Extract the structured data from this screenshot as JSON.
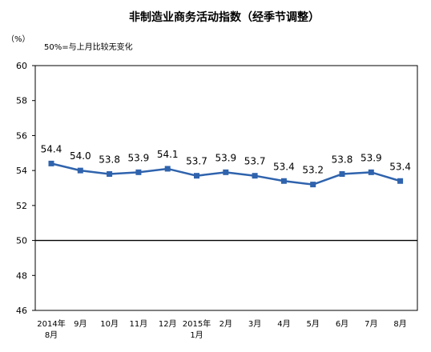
{
  "chart_data": {
    "type": "line",
    "title": "非制造业商务活动指数（经季节调整）",
    "y_unit": "（%）",
    "note": "50%=与上月比较无变化",
    "categories": [
      [
        "2014年",
        "8月"
      ],
      [
        "9月"
      ],
      [
        "10月"
      ],
      [
        "11月"
      ],
      [
        "12月"
      ],
      [
        "2015年",
        "1月"
      ],
      [
        "2月"
      ],
      [
        "3月"
      ],
      [
        "4月"
      ],
      [
        "5月"
      ],
      [
        "6月"
      ],
      [
        "7月"
      ],
      [
        "8月"
      ]
    ],
    "series": [
      {
        "values": [
          54.4,
          54.0,
          53.8,
          53.9,
          54.1,
          53.7,
          53.9,
          53.7,
          53.4,
          53.2,
          53.8,
          53.9,
          53.4
        ],
        "labels": [
          "54.4",
          "54.0",
          "53.8",
          "53.9",
          "54.1",
          "53.7",
          "53.9",
          "53.7",
          "53.4",
          "53.2",
          "53.8",
          "53.9",
          "53.4"
        ]
      }
    ],
    "ylim": [
      46,
      60
    ],
    "yticks": [
      46,
      48,
      50,
      52,
      54,
      56,
      58,
      60
    ],
    "reference_line": 50,
    "grid": false,
    "line_color": "#2f63ad",
    "axis_color": "#000000"
  }
}
